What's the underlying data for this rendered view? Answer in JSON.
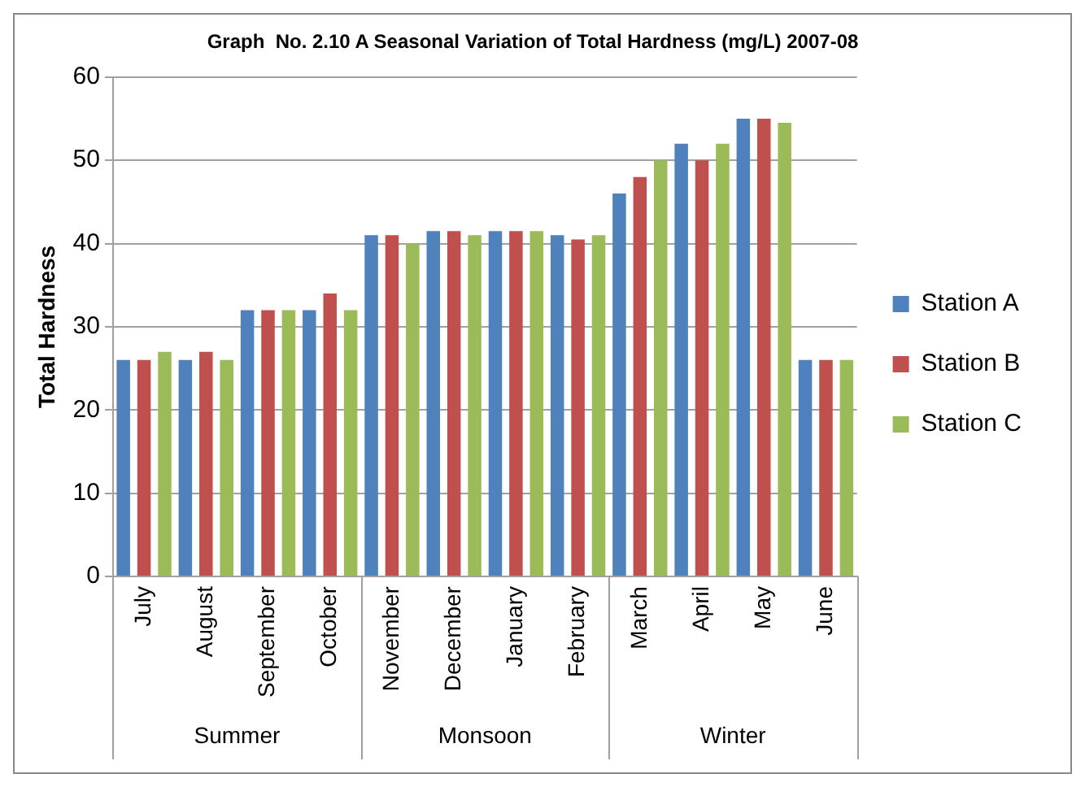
{
  "chart_data": {
    "type": "bar",
    "title": "Graph  No. 2.10 A Seasonal Variation of Total Hardness (mg/L) 2007-08",
    "ylabel": "Total Hardness",
    "categories": [
      "July",
      "August",
      "September",
      "October",
      "November",
      "December",
      "January",
      "February",
      "March",
      "April",
      "May",
      "June"
    ],
    "series": [
      {
        "name": "Station A",
        "color": "#4f81bd",
        "values": [
          26,
          26,
          32,
          32,
          41,
          41.5,
          41.5,
          41,
          46,
          52,
          55,
          26
        ]
      },
      {
        "name": "Station B",
        "color": "#c0504d",
        "values": [
          26,
          27,
          32,
          34,
          41,
          41.5,
          41.5,
          40.5,
          48,
          50,
          55,
          26
        ]
      },
      {
        "name": "Station C",
        "color": "#9bbb59",
        "values": [
          27,
          26,
          32,
          32,
          40,
          41,
          41.5,
          41,
          50,
          52,
          54.5,
          26
        ]
      }
    ],
    "annotations": [
      "Summer",
      "Monsoon",
      "Winter"
    ],
    "ylim": [
      0,
      60
    ],
    "yticks": [
      0,
      10,
      20,
      30,
      40,
      50,
      60
    ],
    "grid": "y",
    "legend": "right"
  }
}
